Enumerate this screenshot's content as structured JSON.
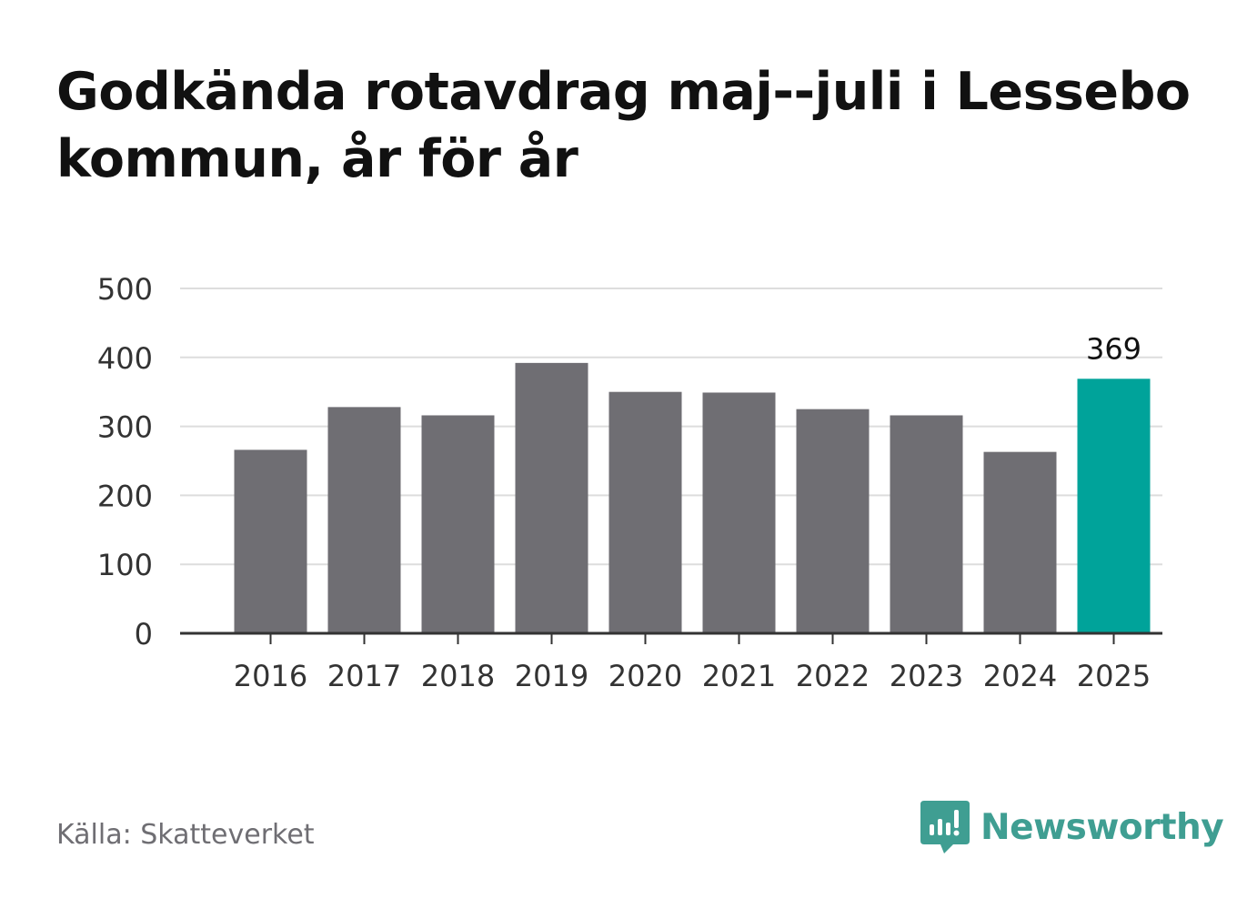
{
  "title": "Godkända rotavdrag maj--juli i Lessebo kommun, år för år",
  "source": "Källa: Skatteverket",
  "brand": {
    "name": "Newsworthy",
    "icon": "newsworthy-logo-icon",
    "color": "#3f9e92"
  },
  "colors": {
    "bar": "#6f6e73",
    "highlight": "#00a39a",
    "grid": "#dddddd",
    "axis": "#333333"
  },
  "chart_data": {
    "type": "bar",
    "title": "Godkända rotavdrag maj--juli i Lessebo kommun, år för år",
    "xlabel": "",
    "ylabel": "",
    "categories": [
      "2016",
      "2017",
      "2018",
      "2019",
      "2020",
      "2021",
      "2022",
      "2023",
      "2024",
      "2025"
    ],
    "values": [
      266,
      328,
      316,
      392,
      350,
      349,
      325,
      316,
      263,
      369
    ],
    "ylim": [
      0,
      500
    ],
    "yticks": [
      "0",
      "100",
      "200",
      "300",
      "400",
      "500"
    ],
    "grid": true,
    "highlight_index": 9,
    "annotation": {
      "category": "2025",
      "text": "369"
    }
  }
}
